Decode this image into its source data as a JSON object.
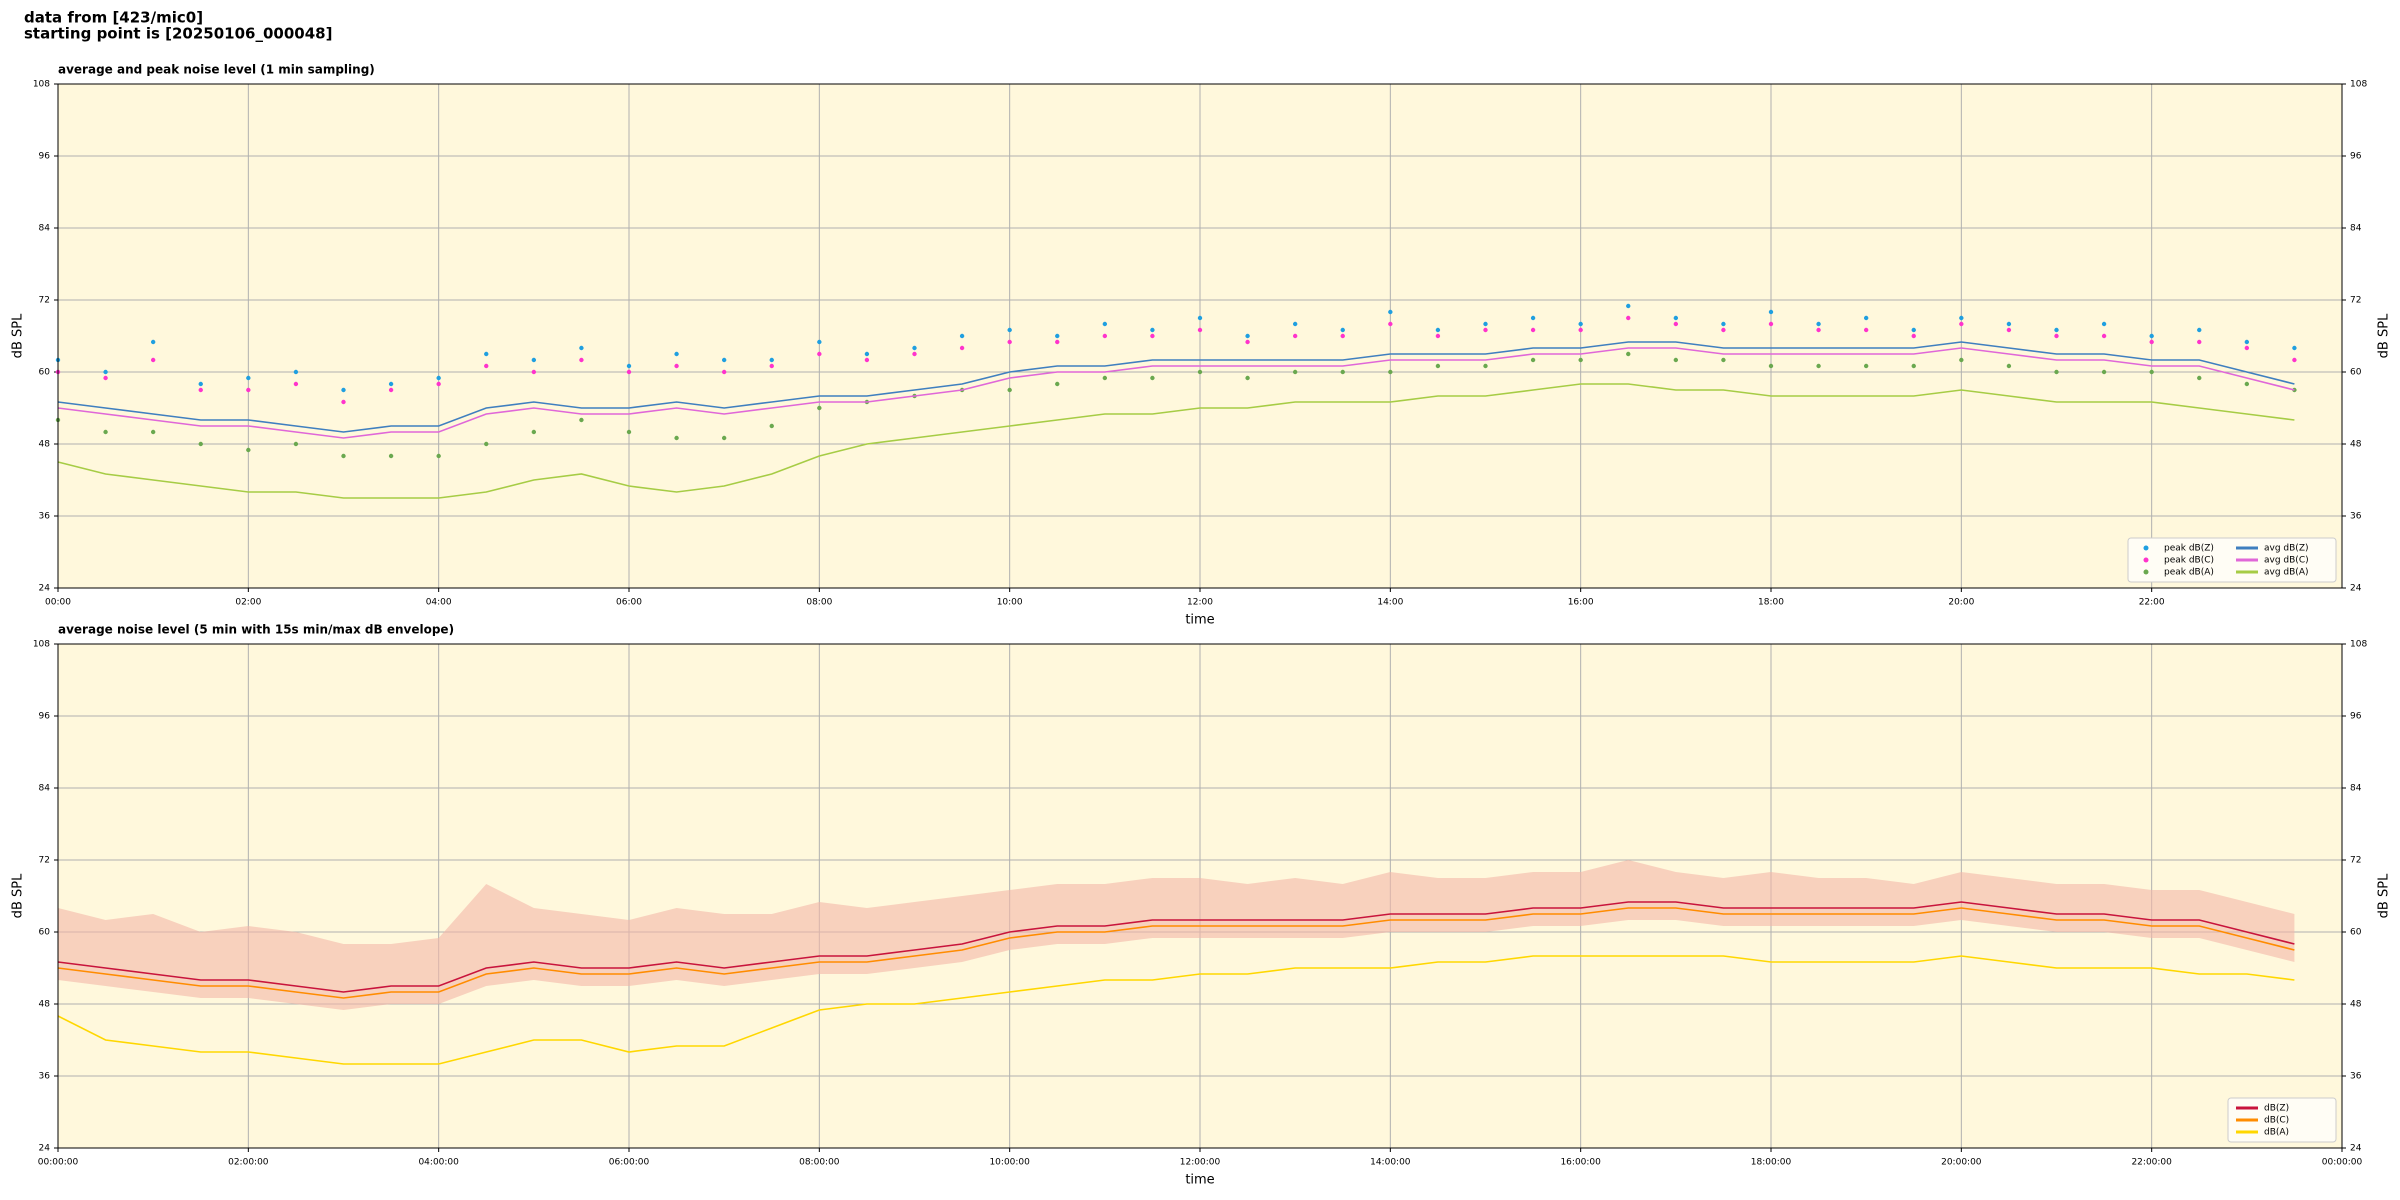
{
  "header": {
    "lines": [
      "data from [423/mic0]",
      "starting point is [20250106_000048]"
    ]
  },
  "chart_data": [
    {
      "type": "line",
      "title": "average and peak noise level (1 min sampling)",
      "x_label": "time",
      "y_label": "dB SPL",
      "background": "#fff8dc",
      "grid": true,
      "legend": "lower right",
      "x": [
        0,
        0.5,
        1,
        1.5,
        2,
        2.5,
        3,
        3.5,
        4,
        4.5,
        5,
        5.5,
        6,
        6.5,
        7,
        7.5,
        8,
        8.5,
        9,
        9.5,
        10,
        10.5,
        11,
        11.5,
        12,
        12.5,
        13,
        13.5,
        14,
        14.5,
        15,
        15.5,
        16,
        16.5,
        17,
        17.5,
        18,
        18.5,
        19,
        19.5,
        20,
        20.5,
        21,
        21.5,
        22,
        22.5,
        23,
        23.5
      ],
      "xlim": [
        0,
        24
      ],
      "xticks": [
        {
          "value": 0,
          "label": "00:00"
        },
        {
          "value": 2,
          "label": "02:00"
        },
        {
          "value": 4,
          "label": "04:00"
        },
        {
          "value": 6,
          "label": "06:00"
        },
        {
          "value": 8,
          "label": "08:00"
        },
        {
          "value": 10,
          "label": "10:00"
        },
        {
          "value": 12,
          "label": "12:00"
        },
        {
          "value": 14,
          "label": "14:00"
        },
        {
          "value": 16,
          "label": "16:00"
        },
        {
          "value": 18,
          "label": "18:00"
        },
        {
          "value": 20,
          "label": "20:00"
        },
        {
          "value": 22,
          "label": "22:00"
        }
      ],
      "ylim": [
        24,
        108
      ],
      "yticks": [
        24,
        36,
        48,
        60,
        72,
        84,
        96,
        108
      ],
      "series": [
        {
          "name": "peak dB(Z)",
          "style": "scatter",
          "color": "#1f9fe0",
          "values": [
            62,
            60,
            65,
            58,
            59,
            60,
            57,
            58,
            59,
            63,
            62,
            64,
            61,
            63,
            62,
            62,
            65,
            63,
            64,
            66,
            67,
            66,
            68,
            67,
            69,
            66,
            68,
            67,
            70,
            67,
            68,
            69,
            68,
            71,
            69,
            68,
            70,
            68,
            69,
            67,
            69,
            68,
            67,
            68,
            66,
            67,
            65,
            64
          ]
        },
        {
          "name": "peak dB(C)",
          "style": "scatter",
          "color": "#ff33cc",
          "values": [
            60,
            59,
            62,
            57,
            57,
            58,
            55,
            57,
            58,
            61,
            60,
            62,
            60,
            61,
            60,
            61,
            63,
            62,
            63,
            64,
            65,
            65,
            66,
            66,
            67,
            65,
            66,
            66,
            68,
            66,
            67,
            67,
            67,
            69,
            68,
            67,
            68,
            67,
            67,
            66,
            68,
            67,
            66,
            66,
            65,
            65,
            64,
            62
          ]
        },
        {
          "name": "peak dB(A)",
          "style": "scatter",
          "color": "#6aa84f",
          "values": [
            52,
            50,
            50,
            48,
            47,
            48,
            46,
            46,
            46,
            48,
            50,
            52,
            50,
            49,
            49,
            51,
            54,
            55,
            56,
            57,
            57,
            58,
            59,
            59,
            60,
            59,
            60,
            60,
            60,
            61,
            61,
            62,
            62,
            63,
            62,
            62,
            61,
            61,
            61,
            61,
            62,
            61,
            60,
            60,
            60,
            59,
            58,
            57
          ]
        },
        {
          "name": "avg dB(Z)",
          "style": "line",
          "color": "#3f7fbf",
          "values": [
            55,
            54,
            53,
            52,
            52,
            51,
            50,
            51,
            51,
            54,
            55,
            54,
            54,
            55,
            54,
            55,
            56,
            56,
            57,
            58,
            60,
            61,
            61,
            62,
            62,
            62,
            62,
            62,
            63,
            63,
            63,
            64,
            64,
            65,
            65,
            64,
            64,
            64,
            64,
            64,
            65,
            64,
            63,
            63,
            62,
            62,
            60,
            58
          ]
        },
        {
          "name": "avg dB(C)",
          "style": "line",
          "color": "#e067d8",
          "values": [
            54,
            53,
            52,
            51,
            51,
            50,
            49,
            50,
            50,
            53,
            54,
            53,
            53,
            54,
            53,
            54,
            55,
            55,
            56,
            57,
            59,
            60,
            60,
            61,
            61,
            61,
            61,
            61,
            62,
            62,
            62,
            63,
            63,
            64,
            64,
            63,
            63,
            63,
            63,
            63,
            64,
            63,
            62,
            62,
            61,
            61,
            59,
            57
          ]
        },
        {
          "name": "avg dB(A)",
          "style": "line",
          "color": "#a6cc45",
          "values": [
            45,
            43,
            42,
            41,
            40,
            40,
            39,
            39,
            39,
            40,
            42,
            43,
            41,
            40,
            41,
            43,
            46,
            48,
            49,
            50,
            51,
            52,
            53,
            53,
            54,
            54,
            55,
            55,
            55,
            56,
            56,
            57,
            58,
            58,
            57,
            57,
            56,
            56,
            56,
            56,
            57,
            56,
            55,
            55,
            55,
            54,
            53,
            52
          ]
        }
      ]
    },
    {
      "type": "line",
      "title": "average noise level (5 min with 15s min/max dB envelope)",
      "x_label": "time",
      "y_label": "dB SPL",
      "background": "#fff8dc",
      "grid": true,
      "legend": "lower right",
      "x": [
        0,
        0.5,
        1,
        1.5,
        2,
        2.5,
        3,
        3.5,
        4,
        4.5,
        5,
        5.5,
        6,
        6.5,
        7,
        7.5,
        8,
        8.5,
        9,
        9.5,
        10,
        10.5,
        11,
        11.5,
        12,
        12.5,
        13,
        13.5,
        14,
        14.5,
        15,
        15.5,
        16,
        16.5,
        17,
        17.5,
        18,
        18.5,
        19,
        19.5,
        20,
        20.5,
        21,
        21.5,
        22,
        22.5,
        23,
        23.5
      ],
      "xlim": [
        0,
        24
      ],
      "xticks": [
        {
          "value": 0,
          "label": "00:00:00"
        },
        {
          "value": 2,
          "label": "02:00:00"
        },
        {
          "value": 4,
          "label": "04:00:00"
        },
        {
          "value": 6,
          "label": "06:00:00"
        },
        {
          "value": 8,
          "label": "08:00:00"
        },
        {
          "value": 10,
          "label": "10:00:00"
        },
        {
          "value": 12,
          "label": "12:00:00"
        },
        {
          "value": 14,
          "label": "14:00:00"
        },
        {
          "value": 16,
          "label": "16:00:00"
        },
        {
          "value": 18,
          "label": "18:00:00"
        },
        {
          "value": 20,
          "label": "20:00:00"
        },
        {
          "value": 22,
          "label": "22:00:00"
        },
        {
          "value": 24,
          "label": "00:00:00"
        }
      ],
      "ylim": [
        24,
        108
      ],
      "yticks": [
        24,
        36,
        48,
        60,
        72,
        84,
        96,
        108
      ],
      "envelope": {
        "color": "#f4b8a8",
        "min": [
          52,
          51,
          50,
          49,
          49,
          48,
          47,
          48,
          48,
          51,
          52,
          51,
          51,
          52,
          51,
          52,
          53,
          53,
          54,
          55,
          57,
          58,
          58,
          59,
          59,
          59,
          59,
          59,
          60,
          60,
          60,
          61,
          61,
          62,
          62,
          61,
          61,
          61,
          61,
          61,
          62,
          61,
          60,
          60,
          59,
          59,
          57,
          55
        ],
        "max": [
          64,
          62,
          63,
          60,
          61,
          60,
          58,
          58,
          59,
          68,
          64,
          63,
          62,
          64,
          63,
          63,
          65,
          64,
          65,
          66,
          67,
          68,
          68,
          69,
          69,
          68,
          69,
          68,
          70,
          69,
          69,
          70,
          70,
          72,
          70,
          69,
          70,
          69,
          69,
          68,
          70,
          69,
          68,
          68,
          67,
          67,
          65,
          63
        ]
      },
      "series": [
        {
          "name": "dB(Z)",
          "style": "line",
          "color": "#c8143c",
          "values": [
            55,
            54,
            53,
            52,
            52,
            51,
            50,
            51,
            51,
            54,
            55,
            54,
            54,
            55,
            54,
            55,
            56,
            56,
            57,
            58,
            60,
            61,
            61,
            62,
            62,
            62,
            62,
            62,
            63,
            63,
            63,
            64,
            64,
            65,
            65,
            64,
            64,
            64,
            64,
            64,
            65,
            64,
            63,
            63,
            62,
            62,
            60,
            58
          ]
        },
        {
          "name": "dB(C)",
          "style": "line",
          "color": "#ff8c00",
          "values": [
            54,
            53,
            52,
            51,
            51,
            50,
            49,
            50,
            50,
            53,
            54,
            53,
            53,
            54,
            53,
            54,
            55,
            55,
            56,
            57,
            59,
            60,
            60,
            61,
            61,
            61,
            61,
            61,
            62,
            62,
            62,
            63,
            63,
            64,
            64,
            63,
            63,
            63,
            63,
            63,
            64,
            63,
            62,
            62,
            61,
            61,
            59,
            57
          ]
        },
        {
          "name": "dB(A)",
          "style": "line",
          "color": "#ffd700",
          "values": [
            46,
            42,
            41,
            40,
            40,
            39,
            38,
            38,
            38,
            40,
            42,
            42,
            40,
            41,
            41,
            44,
            47,
            48,
            48,
            49,
            50,
            51,
            52,
            52,
            53,
            53,
            54,
            54,
            54,
            55,
            55,
            56,
            56,
            56,
            56,
            56,
            55,
            55,
            55,
            55,
            56,
            55,
            54,
            54,
            54,
            53,
            53,
            52
          ]
        }
      ]
    }
  ]
}
